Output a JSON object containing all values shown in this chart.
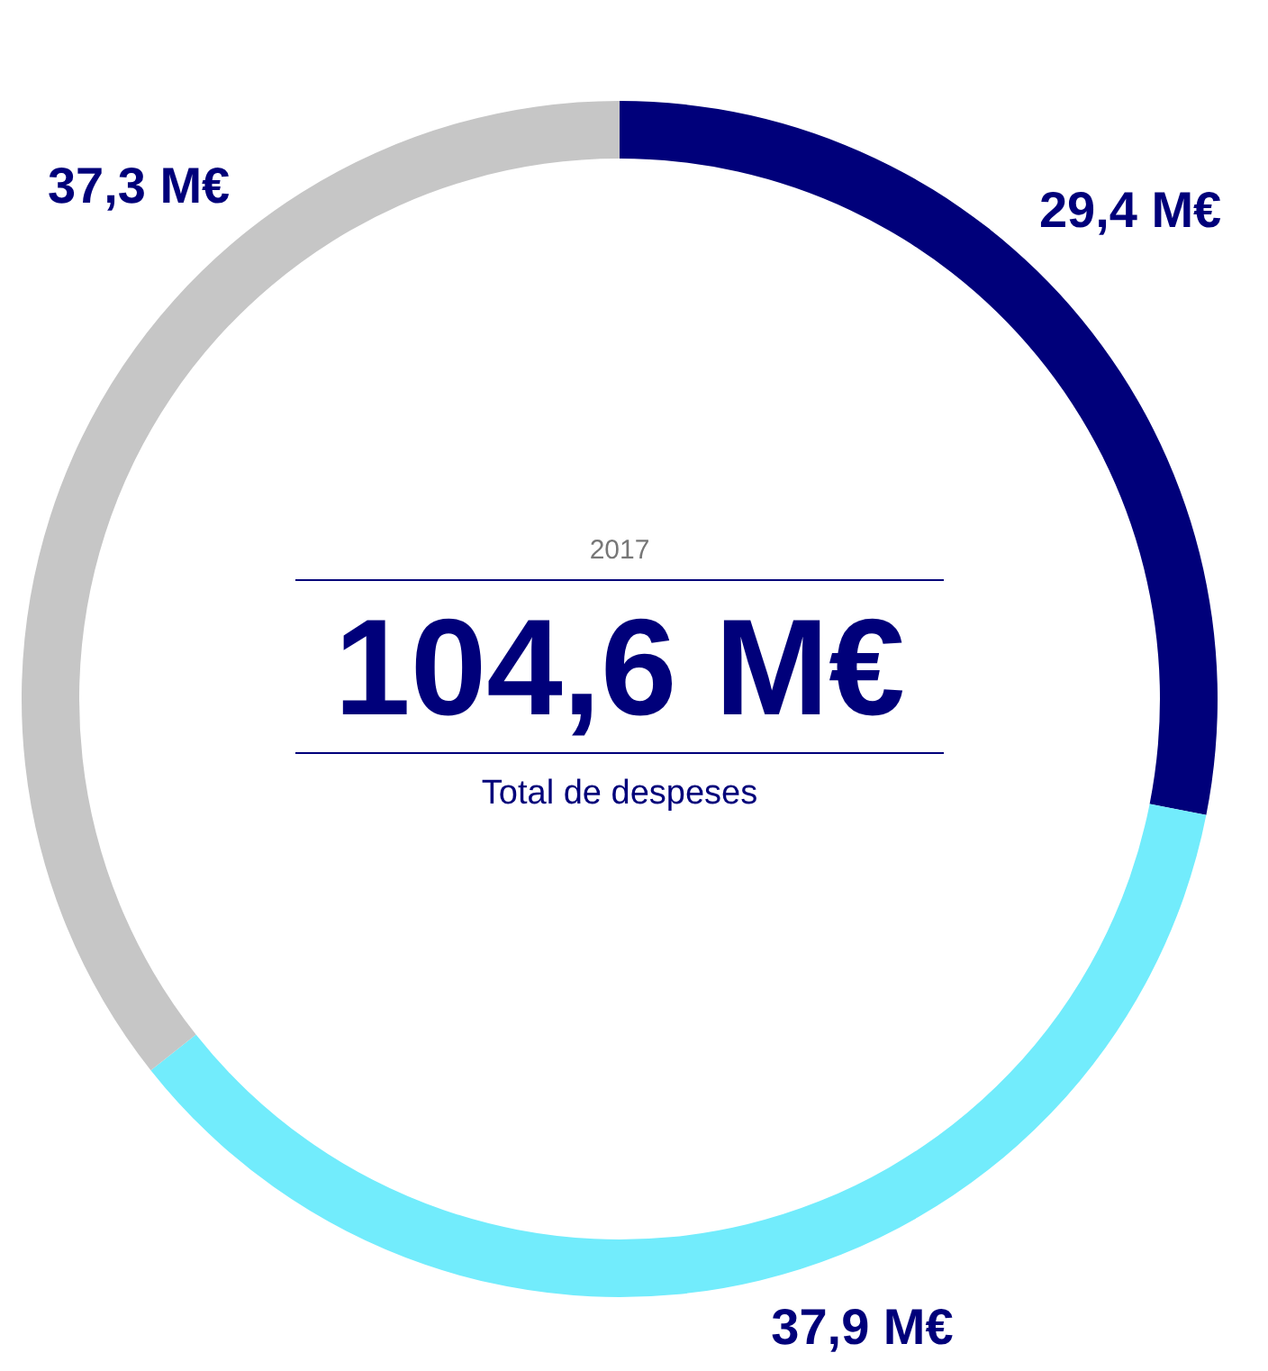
{
  "chart_data": {
    "type": "donut",
    "title": "104,6 M€",
    "subtitle": "2017",
    "annotations": [
      "Total de despeses"
    ],
    "categories": [
      null,
      null,
      null
    ],
    "values": [
      29.4,
      37.9,
      37.3
    ],
    "colors": [
      "#00007a",
      "#72ecfc",
      "#c6c6c6"
    ],
    "value_labels": [
      "29,4 M€",
      "37,9 M€",
      "37,3 M€"
    ]
  }
}
